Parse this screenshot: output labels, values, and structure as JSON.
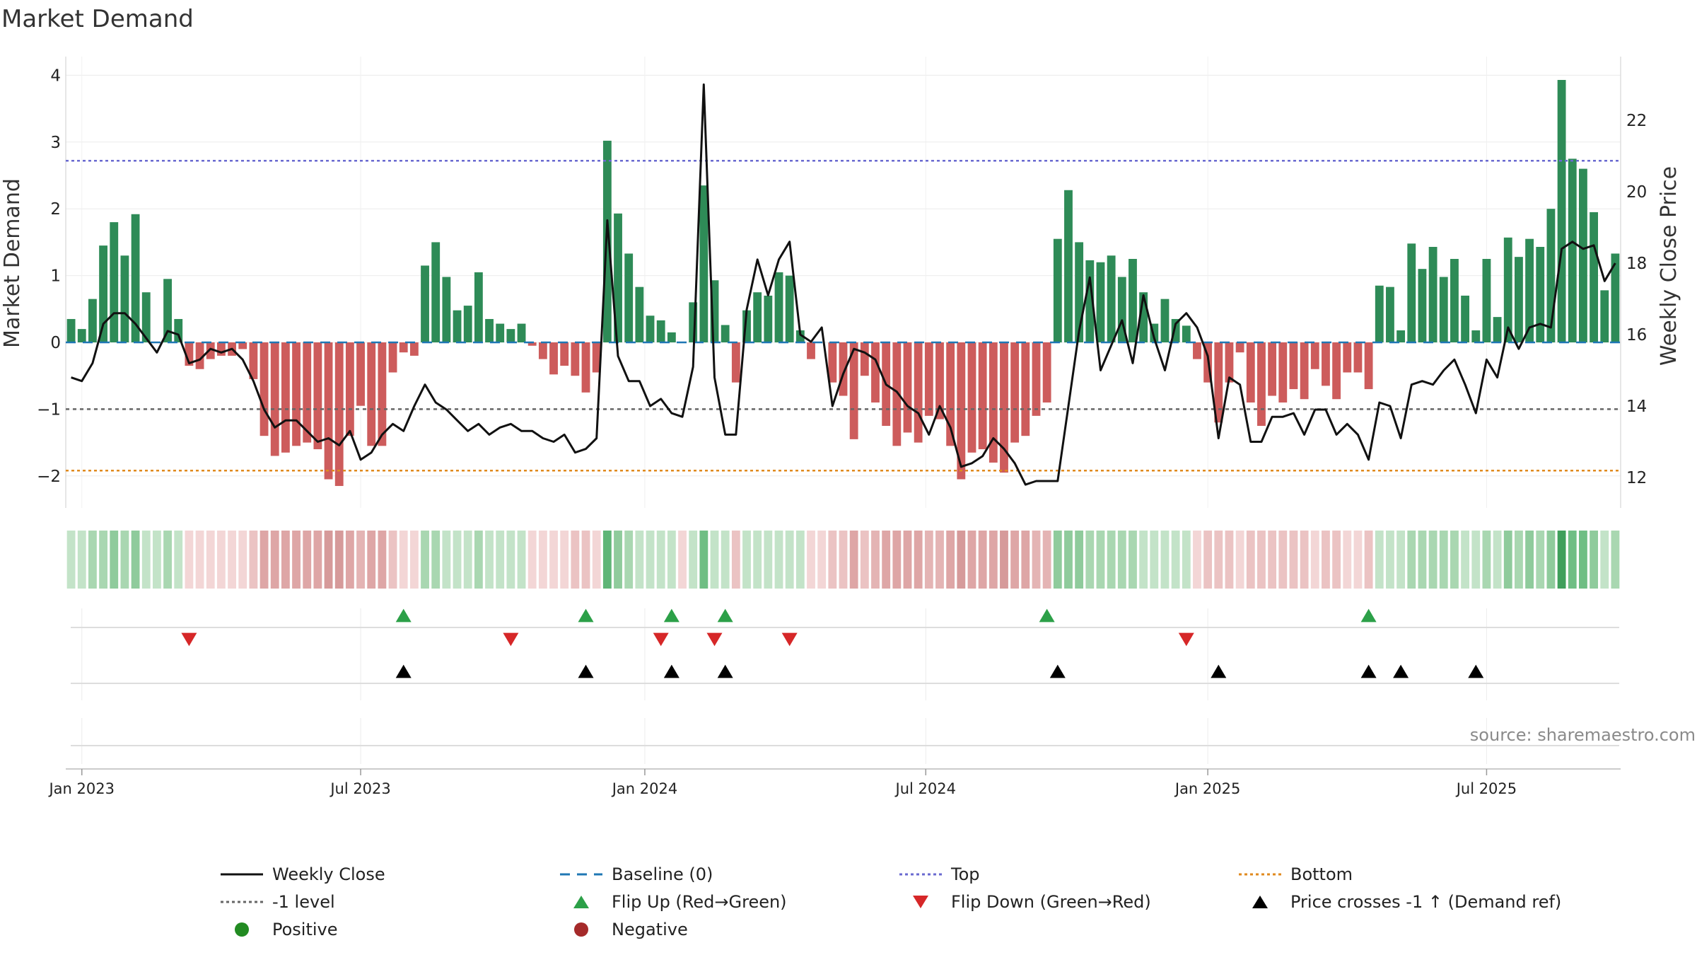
{
  "chart_data": {
    "type": "bar",
    "title": "Market Demand",
    "ylabel": "Market Demand",
    "y2label": "Weekly Close Price",
    "source": "source: sharemaestro.com",
    "ylim": [
      -2.5,
      4.3
    ],
    "y2lim": [
      11.0,
      23.5
    ],
    "yticks": [
      {
        "value": 4,
        "label": "4"
      },
      {
        "value": 3,
        "label": "3"
      },
      {
        "value": 2,
        "label": "2"
      },
      {
        "value": 1,
        "label": "1"
      },
      {
        "value": 0,
        "label": "0"
      },
      {
        "value": -1,
        "label": "−1"
      },
      {
        "value": -2,
        "label": "−2"
      }
    ],
    "y2ticks": [
      {
        "value": 22,
        "label": "22"
      },
      {
        "value": 20,
        "label": "20"
      },
      {
        "value": 18,
        "label": "18"
      },
      {
        "value": 16,
        "label": "16"
      },
      {
        "value": 14,
        "label": "14"
      },
      {
        "value": 12,
        "label": "12"
      }
    ],
    "xticks": [
      {
        "week": 1,
        "label": "Jan 2023"
      },
      {
        "week": 27,
        "label": "Jul 2023"
      },
      {
        "week": 53.5,
        "label": "Jan 2024"
      },
      {
        "week": 79.7,
        "label": "Jul 2024"
      },
      {
        "week": 106,
        "label": "Jan 2025"
      },
      {
        "week": 132,
        "label": "Jul 2025"
      }
    ],
    "colors": {
      "positive": "#2e8b57",
      "negative": "#cd5c5c",
      "close": "#111111",
      "baseline": "#1f77b4",
      "top": "#6a6ad0",
      "bottom": "#e08a1e",
      "minus1": "#666666",
      "flip_up": "#2ca048",
      "flip_down": "#d62728",
      "cross": "#000000",
      "legend_positive": "#228b22",
      "legend_negative": "#a52a2a"
    },
    "levels": {
      "baseline": 0,
      "top": 2.72,
      "bottom": -1.92,
      "minus1": -1
    },
    "demand": [
      0.35,
      0.2,
      0.65,
      1.45,
      1.8,
      1.3,
      1.92,
      0.75,
      0.0,
      0.95,
      0.35,
      -0.35,
      -0.4,
      -0.25,
      -0.2,
      -0.2,
      -0.1,
      -0.55,
      -1.4,
      -1.7,
      -1.65,
      -1.55,
      -1.5,
      -1.6,
      -2.05,
      -2.15,
      -1.4,
      -0.95,
      -1.55,
      -1.55,
      -0.45,
      -0.15,
      -0.2,
      1.15,
      1.5,
      0.98,
      0.48,
      0.55,
      1.05,
      0.35,
      0.28,
      0.2,
      0.28,
      -0.05,
      -0.25,
      -0.48,
      -0.35,
      -0.5,
      -0.75,
      -0.45,
      3.02,
      1.93,
      1.33,
      0.83,
      0.4,
      0.33,
      0.15,
      0.0,
      0.6,
      2.35,
      0.93,
      0.26,
      -0.6,
      0.48,
      0.75,
      0.7,
      1.05,
      1.0,
      0.18,
      -0.25,
      0.0,
      -0.6,
      -0.8,
      -1.45,
      -0.5,
      -0.9,
      -1.25,
      -1.55,
      -1.35,
      -1.5,
      -1.1,
      -1.15,
      -1.55,
      -2.05,
      -1.65,
      -1.6,
      -1.8,
      -1.95,
      -1.5,
      -1.4,
      -1.1,
      -0.9,
      1.55,
      2.28,
      1.5,
      1.23,
      1.2,
      1.3,
      0.98,
      1.25,
      0.75,
      0.28,
      0.65,
      0.35,
      0.25,
      -0.25,
      -0.6,
      -1.2,
      -0.6,
      -0.15,
      -0.9,
      -1.25,
      -0.8,
      -0.9,
      -0.7,
      -0.85,
      -0.4,
      -0.65,
      -0.85,
      -0.45,
      -0.45,
      -0.7,
      0.85,
      0.83,
      0.18,
      1.48,
      1.1,
      1.43,
      0.98,
      1.25,
      0.7,
      0.18,
      1.25,
      0.38,
      1.57,
      1.28,
      1.55,
      1.43,
      2.0,
      3.93,
      2.75,
      2.6,
      1.95,
      0.78,
      1.33
    ],
    "close": [
      14.8,
      14.7,
      15.2,
      16.3,
      16.6,
      16.6,
      16.3,
      15.9,
      15.5,
      16.1,
      16.0,
      15.2,
      15.3,
      15.6,
      15.5,
      15.6,
      15.3,
      14.7,
      13.9,
      13.4,
      13.6,
      13.6,
      13.3,
      13.0,
      13.1,
      12.9,
      13.3,
      12.5,
      12.7,
      13.2,
      13.5,
      13.3,
      14.0,
      14.6,
      14.1,
      13.9,
      13.6,
      13.3,
      13.5,
      13.2,
      13.4,
      13.5,
      13.3,
      13.3,
      13.1,
      13.0,
      13.2,
      12.7,
      12.8,
      13.1,
      19.2,
      15.4,
      14.7,
      14.7,
      14.0,
      14.2,
      13.8,
      13.7,
      15.1,
      23.0,
      14.8,
      13.2,
      13.2,
      16.7,
      18.1,
      17.1,
      18.1,
      18.6,
      16.0,
      15.8,
      16.2,
      14.0,
      14.9,
      15.6,
      15.5,
      15.3,
      14.6,
      14.4,
      14.0,
      13.8,
      13.2,
      14.0,
      13.4,
      12.3,
      12.4,
      12.6,
      13.1,
      12.8,
      12.4,
      11.8,
      11.9,
      11.9,
      11.9,
      14.0,
      16.1,
      17.6,
      15.0,
      15.7,
      16.4,
      15.2,
      17.1,
      15.9,
      15.0,
      16.3,
      16.6,
      16.2,
      15.4,
      13.1,
      14.8,
      14.6,
      13.0,
      13.0,
      13.7,
      13.7,
      13.8,
      13.2,
      13.9,
      13.9,
      13.2,
      13.5,
      13.2,
      12.5,
      14.1,
      14.0,
      13.1,
      14.6,
      14.7,
      14.6,
      15.0,
      15.3,
      14.6,
      13.8,
      15.3,
      14.8,
      16.2,
      15.6,
      16.2,
      16.3,
      16.2,
      18.4,
      18.6,
      18.4,
      18.5,
      17.5,
      18.0
    ],
    "strip_colors": [
      "#c3e3c8",
      "#c3e3c8",
      "#a9d7b1",
      "#a9d7b1",
      "#8fcb9c",
      "#a9d7b1",
      "#8fcb9c",
      "#c3e3c8",
      "#c3e3c8",
      "#a9d7b1",
      "#c3e3c8",
      "#f3d6d6",
      "#f3d6d6",
      "#f3d6d6",
      "#f3d6d6",
      "#f3d6d6",
      "#f3d6d6",
      "#ebc3c3",
      "#dea6a6",
      "#dea6a6",
      "#dea6a6",
      "#dea6a6",
      "#dea6a6",
      "#dea6a6",
      "#d69a9a",
      "#d69a9a",
      "#dea6a6",
      "#e4b4b4",
      "#dea6a6",
      "#dea6a6",
      "#ebc3c3",
      "#f3d6d6",
      "#f3d6d6",
      "#a9d7b1",
      "#a9d7b1",
      "#c3e3c8",
      "#c3e3c8",
      "#c3e3c8",
      "#a9d7b1",
      "#c3e3c8",
      "#c3e3c8",
      "#c3e3c8",
      "#c3e3c8",
      "#f3d6d6",
      "#f3d6d6",
      "#f3d6d6",
      "#f3d6d6",
      "#ebc3c3",
      "#ebc3c3",
      "#f3d6d6",
      "#5fb577",
      "#8fcb9c",
      "#a9d7b1",
      "#c3e3c8",
      "#c3e3c8",
      "#c3e3c8",
      "#c3e3c8",
      "#f3d6d6",
      "#c3e3c8",
      "#6fbe84",
      "#c3e3c8",
      "#c3e3c8",
      "#ebc3c3",
      "#c3e3c8",
      "#c3e3c8",
      "#c3e3c8",
      "#c3e3c8",
      "#c3e3c8",
      "#c3e3c8",
      "#f3d6d6",
      "#f3d6d6",
      "#ebc3c3",
      "#ebc3c3",
      "#dea6a6",
      "#ebc3c3",
      "#e4b4b4",
      "#dea6a6",
      "#dea6a6",
      "#dea6a6",
      "#dea6a6",
      "#e4b4b4",
      "#e4b4b4",
      "#dea6a6",
      "#d69a9a",
      "#dea6a6",
      "#dea6a6",
      "#dea6a6",
      "#d69a9a",
      "#dea6a6",
      "#dea6a6",
      "#e4b4b4",
      "#e4b4b4",
      "#8fcb9c",
      "#8fcb9c",
      "#8fcb9c",
      "#a9d7b1",
      "#a9d7b1",
      "#a9d7b1",
      "#a9d7b1",
      "#a9d7b1",
      "#c3e3c8",
      "#c3e3c8",
      "#c3e3c8",
      "#c3e3c8",
      "#c3e3c8",
      "#f3d6d6",
      "#ebc3c3",
      "#ebc3c3",
      "#ebc3c3",
      "#f3d6d6",
      "#ebc3c3",
      "#ebc3c3",
      "#ebc3c3",
      "#ebc3c3",
      "#ebc3c3",
      "#ebc3c3",
      "#f3d6d6",
      "#ebc3c3",
      "#ebc3c3",
      "#f3d6d6",
      "#f3d6d6",
      "#ebc3c3",
      "#c3e3c8",
      "#c3e3c8",
      "#c3e3c8",
      "#a9d7b1",
      "#a9d7b1",
      "#a9d7b1",
      "#a9d7b1",
      "#a9d7b1",
      "#c3e3c8",
      "#c3e3c8",
      "#a9d7b1",
      "#c3e3c8",
      "#8fcb9c",
      "#a9d7b1",
      "#8fcb9c",
      "#a9d7b1",
      "#8fcb9c",
      "#3f9f5b",
      "#6fbe84",
      "#6fbe84",
      "#8fcb9c",
      "#c3e3c8",
      "#a9d7b1"
    ],
    "flip_up_weeks": [
      31,
      48,
      56,
      61,
      91,
      121
    ],
    "flip_down_weeks": [
      11,
      41,
      55,
      60,
      67,
      104
    ],
    "price_cross_weeks": [
      31,
      48,
      56,
      61,
      92,
      107,
      121,
      124,
      131
    ],
    "legend": [
      {
        "key": "close",
        "label": "Weekly Close",
        "marker": "line"
      },
      {
        "key": "baseline",
        "label": "Baseline (0)",
        "marker": "dashed"
      },
      {
        "key": "top",
        "label": "Top",
        "marker": "dotted"
      },
      {
        "key": "bottom",
        "label": "Bottom",
        "marker": "dotted"
      },
      {
        "key": "minus1",
        "label": "-1 level",
        "marker": "dotted"
      },
      {
        "key": "flip_up",
        "label": "Flip Up (Red→Green)",
        "marker": "triangle-up"
      },
      {
        "key": "flip_down",
        "label": "Flip Down (Green→Red)",
        "marker": "triangle-down"
      },
      {
        "key": "cross",
        "label": "Price crosses -1 ↑ (Demand ref)",
        "marker": "triangle-up"
      },
      {
        "key": "legend_positive",
        "label": "Positive",
        "marker": "circle"
      },
      {
        "key": "legend_negative",
        "label": "Negative",
        "marker": "circle"
      }
    ]
  }
}
